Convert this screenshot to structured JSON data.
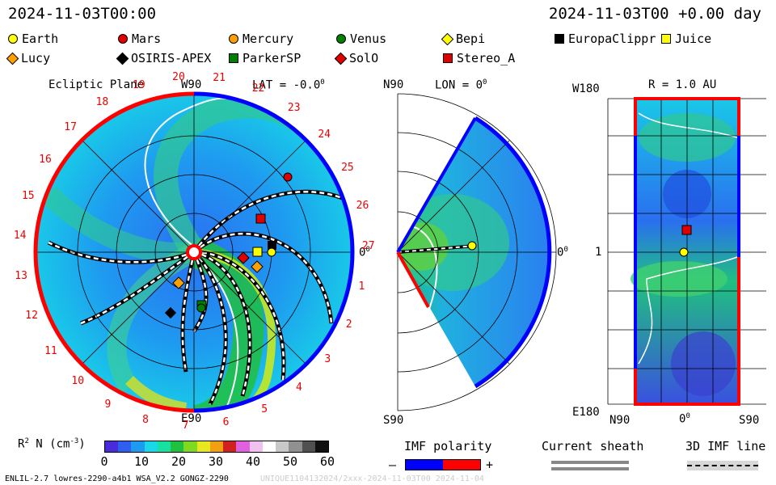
{
  "header": {
    "datetime_left": "2024-11-03T00:00",
    "datetime_right": "2024-11-03T00 +0.00 day"
  },
  "legend": [
    {
      "name": "Earth",
      "color": "#ffff00",
      "shape": "circle"
    },
    {
      "name": "Mars",
      "color": "#e00000",
      "shape": "circle"
    },
    {
      "name": "Mercury",
      "color": "#ffa000",
      "shape": "circle"
    },
    {
      "name": "Venus",
      "color": "#008000",
      "shape": "circle"
    },
    {
      "name": "Bepi",
      "color": "#ffff00",
      "shape": "diamond"
    },
    {
      "name": "EuropaClippr",
      "color": "#000000",
      "shape": "square"
    },
    {
      "name": "Juice",
      "color": "#ffff00",
      "shape": "square"
    },
    {
      "name": "Lucy",
      "color": "#ffa000",
      "shape": "diamond"
    },
    {
      "name": "OSIRIS-APEX",
      "color": "#000000",
      "shape": "diamond"
    },
    {
      "name": "ParkerSP",
      "color": "#008000",
      "shape": "square"
    },
    {
      "name": "SolO",
      "color": "#e00000",
      "shape": "diamond"
    },
    {
      "name": "Stereo_A",
      "color": "#e00000",
      "shape": "square"
    }
  ],
  "ecliptic": {
    "title": "Ecliptic Plane",
    "w90": "W90",
    "lat": "LAT = -0.0",
    "deg": "0",
    "e90": "E90",
    "zero": "0",
    "deg2": "0",
    "carrington_labels": [
      "20",
      "21",
      "22",
      "23",
      "24",
      "25",
      "26",
      "27",
      "1",
      "2",
      "3",
      "4",
      "5",
      "6",
      "7",
      "8",
      "9",
      "10",
      "11",
      "12",
      "13",
      "14",
      "15",
      "16",
      "17",
      "18",
      "19"
    ]
  },
  "meridional": {
    "n90": "N90",
    "lon": "LON = 0",
    "deg": "0",
    "s90": "S90",
    "zero": "0",
    "deg2": "0"
  },
  "radial": {
    "w180": "W180",
    "r": "R = 1.0 AU",
    "one": "1",
    "e180": "E180",
    "n90": "N90",
    "zero": "0",
    "deg": "0",
    "s90": "S90"
  },
  "colorbar": {
    "label": "R",
    "sup": "2",
    "label2": " N (cm",
    "sup2": "-3",
    "label3": ")",
    "ticks": [
      "0",
      "10",
      "20",
      "30",
      "40",
      "50",
      "60"
    ],
    "colors": [
      "#4a2bd9",
      "#2f5ff0",
      "#1e9bf0",
      "#19d8e8",
      "#18e0a0",
      "#20c040",
      "#80d820",
      "#e8e820",
      "#f0a010",
      "#d02020",
      "#e060e0",
      "#f0c0f0",
      "#ffffff",
      "#c8c8c8",
      "#909090",
      "#505050",
      "#101010"
    ]
  },
  "imf": {
    "title": "IMF polarity",
    "minus": "–",
    "plus": "+",
    "neg_color": "#0000ff",
    "pos_color": "#ff0000"
  },
  "sheath": {
    "title": "Current sheath"
  },
  "imfline": {
    "title": "3D IMF line"
  },
  "footer": {
    "left": "ENLIL-2.7 lowres-2290-a4b1 WSA_V2.2 GONGZ-2290",
    "right": "UNIQUE1104132024/2xxx-2024-11-03T00   2024-11-04"
  }
}
